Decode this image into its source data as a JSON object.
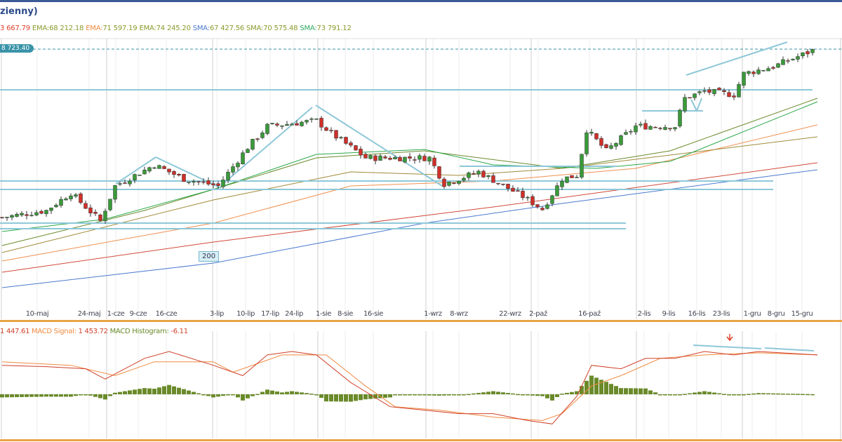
{
  "header": {
    "title": "zienny)"
  },
  "legend": [
    {
      "label": "",
      "value": "3 667.79",
      "color": "#e0402a"
    },
    {
      "label": "EMA:",
      "value": "68 212.18",
      "color": "#8a9a2a"
    },
    {
      "label": "EMA:",
      "value": "71 597.19",
      "color": "#f08a40"
    },
    {
      "label": "EMA:",
      "value": "74 245.20",
      "color": "#8a9a2a"
    },
    {
      "label": "SMA:",
      "value": "67 427.56",
      "color": "#4a7ad0"
    },
    {
      "label": "SMA:",
      "value": "70 575.48",
      "color": "#8a9a2a"
    },
    {
      "label": "SMA:",
      "value": "73 791.12",
      "color": "#2aa860"
    }
  ],
  "price_tag": "8 723.40",
  "annotation_label": "200",
  "macd_legend": {
    "macd_value": "1 447.61",
    "signal_label": "MACD Signal:",
    "signal_value": "1 453.72",
    "hist_label": "MACD Histogram:",
    "hist_value": "-6.11"
  },
  "colors": {
    "up": "#3a9a3a",
    "down": "#d0302a",
    "drawing": "#8ec8d8",
    "macd": "#d0402a",
    "signal": "#f08a40",
    "hist": "#6a8a2a"
  },
  "chart_data": {
    "type": "candlestick",
    "title": "",
    "last_price": 78723.4,
    "x_tick_labels": [
      "10-maj",
      "24-maj",
      "1-cze",
      "9-cze",
      "16-cze",
      "3-lip",
      "10-lip",
      "17-lip",
      "24-lip",
      "1-sie",
      "8-sie",
      "16-sie",
      "1-wrz",
      "8-wrz",
      "22-wrz",
      "2-paź",
      "16-paź",
      "2-lis",
      "9-lis",
      "16-lis",
      "23-lis",
      "1-gru",
      "8-gru",
      "15-gru"
    ],
    "candles_count": 166,
    "close_waypoints": [
      [
        0,
        62955
      ],
      [
        9,
        63612
      ],
      [
        14,
        65255
      ],
      [
        20,
        62627
      ],
      [
        23,
        65912
      ],
      [
        31,
        67882
      ],
      [
        37,
        66568
      ],
      [
        44,
        65912
      ],
      [
        50,
        69525
      ],
      [
        54,
        71497
      ],
      [
        64,
        72022
      ],
      [
        67,
        70840
      ],
      [
        74,
        68540
      ],
      [
        83,
        68540
      ],
      [
        87,
        68540
      ],
      [
        90,
        66108
      ],
      [
        97,
        67226
      ],
      [
        106,
        64926
      ],
      [
        110,
        63740
      ],
      [
        114,
        66568
      ],
      [
        117,
        66897
      ],
      [
        119,
        71168
      ],
      [
        123,
        69197
      ],
      [
        129,
        71497
      ],
      [
        137,
        71497
      ],
      [
        139,
        74124
      ],
      [
        143,
        74780
      ],
      [
        149,
        74452
      ],
      [
        151,
        76424
      ],
      [
        157,
        77080
      ],
      [
        165,
        78592
      ]
    ],
    "moving_averages": [
      {
        "name": "SMA 200",
        "color": "#4a7ad0",
        "points": [
          [
            0,
            56385
          ],
          [
            43,
            58684
          ],
          [
            86,
            62429
          ],
          [
            114,
            64269
          ],
          [
            166,
            67423
          ]
        ]
      },
      {
        "name": "EMA 200",
        "color": "#d04a3a",
        "points": [
          [
            0,
            57830
          ],
          [
            43,
            60655
          ],
          [
            100,
            63940
          ],
          [
            166,
            68080
          ]
        ]
      },
      {
        "name": "EMA 100",
        "color": "#f09050",
        "points": [
          [
            0,
            58880
          ],
          [
            43,
            62429
          ],
          [
            71,
            65912
          ],
          [
            100,
            66371
          ],
          [
            129,
            67554
          ],
          [
            166,
            71628
          ]
        ]
      },
      {
        "name": "EMA 50",
        "color": "#a08a3a",
        "points": [
          [
            0,
            59670
          ],
          [
            43,
            64598
          ],
          [
            71,
            67226
          ],
          [
            93,
            66897
          ],
          [
            114,
            67554
          ],
          [
            143,
            69197
          ],
          [
            166,
            70511
          ]
        ]
      },
      {
        "name": "SMA 50",
        "color": "#6a8a2a",
        "points": [
          [
            0,
            60327
          ],
          [
            29,
            63612
          ],
          [
            64,
            68540
          ],
          [
            86,
            69197
          ],
          [
            114,
            67554
          ],
          [
            136,
            69197
          ],
          [
            166,
            74124
          ]
        ]
      },
      {
        "name": "SMA 20",
        "color": "#2aa84a",
        "points": [
          [
            0,
            61641
          ],
          [
            21,
            62800
          ],
          [
            43,
            65583
          ],
          [
            64,
            68868
          ],
          [
            86,
            69328
          ],
          [
            100,
            67882
          ],
          [
            121,
            67554
          ],
          [
            136,
            68211
          ],
          [
            166,
            73796
          ]
        ]
      }
    ],
    "macd": {
      "macd_line": [
        [
          0,
          1050
        ],
        [
          9,
          1000
        ],
        [
          17,
          925
        ],
        [
          21,
          550
        ],
        [
          29,
          1300
        ],
        [
          34,
          1550
        ],
        [
          43,
          1050
        ],
        [
          49,
          675
        ],
        [
          54,
          1425
        ],
        [
          59,
          1550
        ],
        [
          64,
          1425
        ],
        [
          71,
          425
        ],
        [
          79,
          -450
        ],
        [
          86,
          -575
        ],
        [
          93,
          -700
        ],
        [
          100,
          -700
        ],
        [
          107,
          -950
        ],
        [
          112,
          -1075
        ],
        [
          117,
          -75
        ],
        [
          120,
          1050
        ],
        [
          126,
          925
        ],
        [
          131,
          1300
        ],
        [
          137,
          1300
        ],
        [
          143,
          1550
        ],
        [
          149,
          1425
        ],
        [
          154,
          1550
        ],
        [
          166,
          1425
        ]
      ],
      "signal_line": [
        [
          0,
          1175
        ],
        [
          14,
          1050
        ],
        [
          23,
          675
        ],
        [
          31,
          1175
        ],
        [
          43,
          1175
        ],
        [
          47,
          800
        ],
        [
          57,
          1425
        ],
        [
          66,
          1425
        ],
        [
          74,
          300
        ],
        [
          80,
          -450
        ],
        [
          89,
          -575
        ],
        [
          100,
          -825
        ],
        [
          110,
          -950
        ],
        [
          114,
          -700
        ],
        [
          120,
          300
        ],
        [
          126,
          675
        ],
        [
          134,
          1300
        ],
        [
          143,
          1425
        ],
        [
          154,
          1500
        ],
        [
          166,
          1425
        ]
      ]
    }
  }
}
